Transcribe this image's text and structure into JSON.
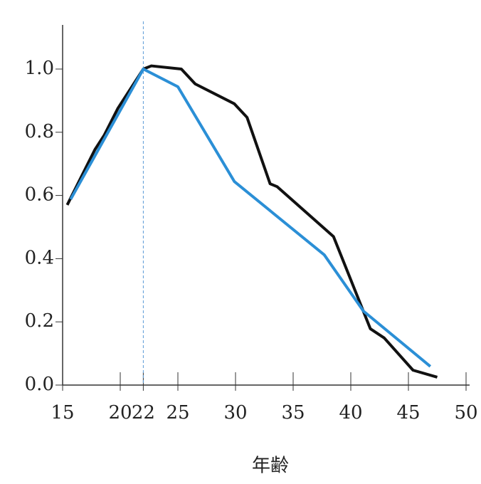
{
  "chart_data": {
    "type": "line",
    "x_label": "年齢",
    "xlim": [
      15,
      50
    ],
    "ylim": [
      0,
      1.13
    ],
    "xticks": [
      15,
      20,
      22,
      25,
      30,
      35,
      40,
      45,
      50
    ],
    "yticks": [
      {
        "value": 0,
        "label": "0.0"
      },
      0.2,
      0.4,
      0.6,
      0.8,
      {
        "value": 1,
        "label": "1.0"
      }
    ],
    "vline": 22,
    "series": [
      {
        "color": "#111111",
        "x": [
          15.4,
          17.8,
          18.6,
          19.8,
          22,
          22.7,
          25.3,
          26.5,
          29.9,
          31,
          33,
          33.6,
          38.5,
          41.7,
          42.9,
          45.4,
          47.5
        ],
        "values": [
          0.57,
          0.745,
          0.79,
          0.876,
          1.0,
          1.01,
          1.0,
          0.953,
          0.89,
          0.847,
          0.637,
          0.628,
          0.47,
          0.178,
          0.149,
          0.047,
          0.025
        ]
      },
      {
        "color": "#2b8fd6",
        "x": [
          15.7,
          22,
          25,
          29.9,
          37.7,
          41.1,
          46.9
        ],
        "values": [
          0.588,
          1.0,
          0.944,
          0.644,
          0.412,
          0.234,
          0.059
        ]
      }
    ]
  }
}
